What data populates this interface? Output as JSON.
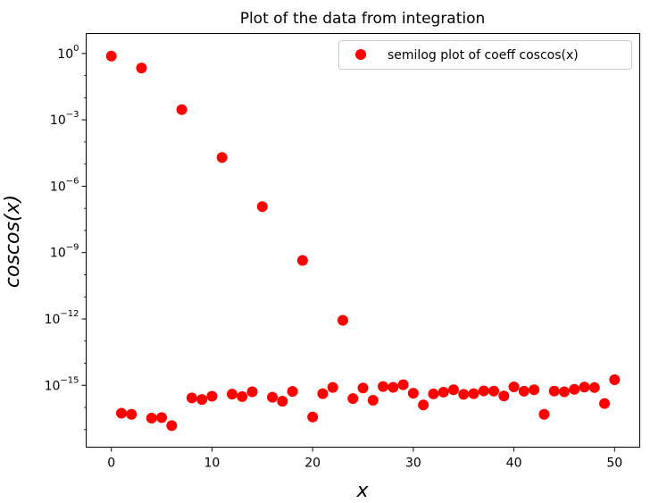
{
  "chart_data": {
    "type": "scatter",
    "title": "Plot of the data from integration",
    "xlabel": "x",
    "ylabel": "coscos(x)",
    "yscale": "log",
    "xlim": [
      -2.5,
      52.5
    ],
    "ylim": [
      1.6e-18,
      8
    ],
    "xticks": [
      "0",
      "10",
      "20",
      "30",
      "40",
      "50"
    ],
    "yticks": [
      "10^0",
      "10^-3",
      "10^-6",
      "10^-9",
      "10^-12",
      "10^-15"
    ],
    "grid": false,
    "legend_position": "top-right",
    "series": [
      {
        "name": "semilog plot of coeff coscos(x)",
        "color": "#ff0000",
        "marker": "circle",
        "x": [
          0,
          1,
          2,
          3,
          4,
          5,
          6,
          7,
          8,
          9,
          10,
          11,
          12,
          13,
          14,
          15,
          16,
          17,
          18,
          19,
          20,
          21,
          22,
          23,
          24,
          25,
          26,
          27,
          28,
          29,
          30,
          31,
          32,
          33,
          34,
          35,
          36,
          37,
          38,
          39,
          40,
          41,
          42,
          43,
          44,
          45,
          46,
          47,
          48,
          49,
          50
        ],
        "y": [
          0.76,
          5.5e-17,
          4.9e-17,
          0.22,
          3.3e-17,
          3.5e-17,
          1.5e-17,
          0.0029,
          2.7e-16,
          2.3e-16,
          3.2e-16,
          2e-05,
          4e-16,
          3.1e-16,
          5.1e-16,
          1.2e-07,
          2.9e-16,
          1.9e-16,
          5.3e-16,
          4.4e-10,
          3.7e-17,
          4.2e-16,
          8e-16,
          8.7e-13,
          2.5e-16,
          7.6e-16,
          2.1e-16,
          8.8e-16,
          8.1e-16,
          1.06e-15,
          4.4e-16,
          1.3e-16,
          4.1e-16,
          4.9e-16,
          6.3e-16,
          3.9e-16,
          4.2e-16,
          5.6e-16,
          5.5e-16,
          3.3e-16,
          8.5e-16,
          5.4e-16,
          6.3e-16,
          4.9e-17,
          5.5e-16,
          5.1e-16,
          6.6e-16,
          8.3e-16,
          7.9e-16,
          1.5e-16,
          1.79e-15
        ]
      }
    ]
  }
}
